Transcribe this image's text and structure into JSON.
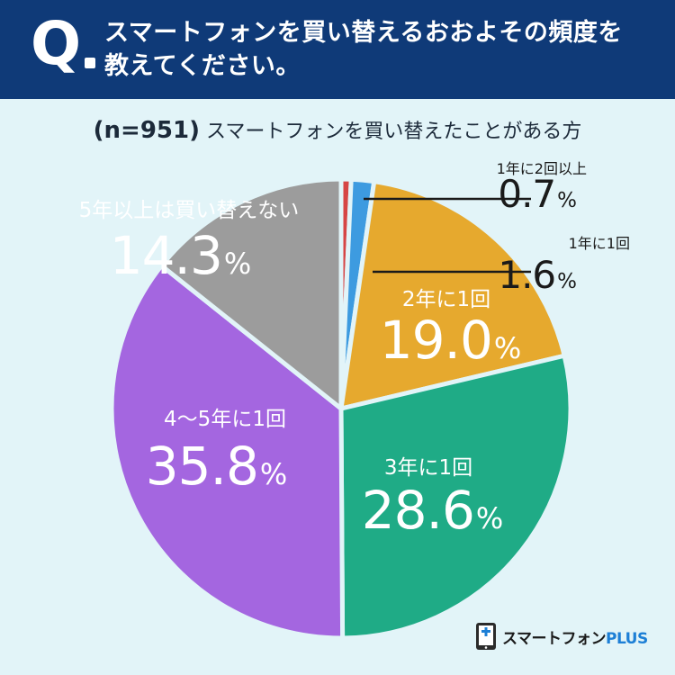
{
  "header": {
    "q_mark": "Q",
    "question_line1": "スマートフォンを買い替えるおおよその頻度を",
    "question_line2": "教えてください。"
  },
  "subtitle": {
    "n_label": "(n=951)",
    "text": "スマートフォンを買い替えたことがある方"
  },
  "colors": {
    "header_bg": "#0f3a78",
    "background": "#e2f4f8",
    "red": "#d64545",
    "blue": "#3d9be0",
    "orange": "#e6a92e",
    "green": "#1fab86",
    "purple": "#a466e0",
    "gray": "#9c9c9c"
  },
  "chart_data": {
    "type": "pie",
    "title": "",
    "unit": "%",
    "slices": [
      {
        "label": "1年に2回以上",
        "value": 0.7,
        "display": "0.7",
        "color": "#d64545"
      },
      {
        "label": "1年に1回",
        "value": 1.6,
        "display": "1.6",
        "color": "#3d9be0"
      },
      {
        "label": "2年に1回",
        "value": 19.0,
        "display": "19.0",
        "color": "#e6a92e"
      },
      {
        "label": "3年に1回",
        "value": 28.6,
        "display": "28.6",
        "color": "#1fab86"
      },
      {
        "label": "4〜5年に1回",
        "value": 35.8,
        "display": "35.8",
        "color": "#a466e0"
      },
      {
        "label": "5年以上は買い替えない",
        "value": 14.3,
        "display": "14.3",
        "color": "#9c9c9c"
      }
    ]
  },
  "logo": {
    "name": "スマートフォン",
    "suffix": "PLUS"
  }
}
